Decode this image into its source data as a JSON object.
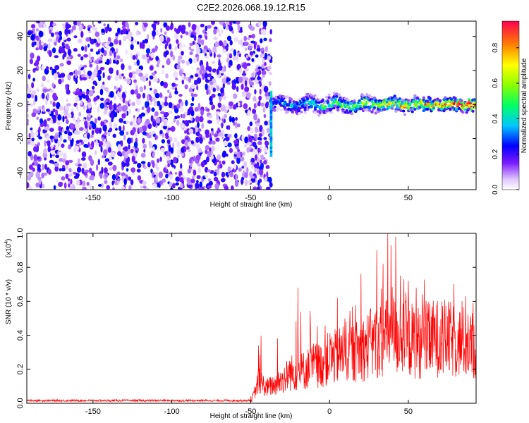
{
  "title": "C2E2.2026.068.19.12.R15",
  "chart_data": [
    {
      "type": "heatmap",
      "xlabel": "Height of straight line (km)",
      "ylabel": "Frequency (Hz)",
      "xlim": [
        -192,
        93
      ],
      "ylim": [
        -50,
        49
      ],
      "x_ticks": [
        -150,
        -100,
        -50,
        0,
        50
      ],
      "y_ticks": [
        -40,
        -20,
        0,
        20,
        40
      ],
      "colorbar": {
        "label": "Normalized spectral amplitude",
        "range": [
          0,
          0.95
        ],
        "ticks": [
          0.0,
          0.2,
          0.4,
          0.6,
          0.8
        ]
      },
      "noise_region": {
        "x_range": [
          -192,
          -37
        ],
        "note": "scattered low-amplitude speckle across all frequencies"
      },
      "signal_region": {
        "x_range": [
          -37,
          93
        ],
        "center_frequency_hz": 0,
        "band_halfwidth_hz": 4,
        "peak_amplitude": 0.9
      }
    },
    {
      "type": "line",
      "xlabel": "Height of straight line (km)",
      "ylabel": "SNR (10 * v/v)",
      "y_multiplier_label": "(x10",
      "y_multiplier_exp": "4",
      "xlim": [
        -192,
        93
      ],
      "ylim": [
        0,
        1.0
      ],
      "x_ticks": [
        -150,
        -100,
        -50,
        0,
        50
      ],
      "y_ticks": [
        "0.0",
        "0.2",
        "0.4",
        "0.6",
        "0.8",
        "1.0"
      ],
      "series": [
        {
          "color": "#ff0000",
          "x": [
            -192,
            -50,
            -47,
            -45,
            -40,
            -35,
            -30,
            -25,
            -20,
            -15,
            -10,
            -5,
            0,
            5,
            10,
            15,
            20,
            25,
            30,
            35,
            40,
            45,
            50,
            55,
            60,
            65,
            70,
            75,
            80,
            85,
            90,
            93
          ],
          "y": [
            0.01,
            0.01,
            0.08,
            0.15,
            0.1,
            0.12,
            0.15,
            0.2,
            0.2,
            0.22,
            0.25,
            0.25,
            0.3,
            0.3,
            0.35,
            0.33,
            0.35,
            0.38,
            0.4,
            0.42,
            0.45,
            0.42,
            0.42,
            0.4,
            0.4,
            0.42,
            0.43,
            0.42,
            0.4,
            0.4,
            0.38,
            0.35
          ],
          "peaks_x": [
            -45,
            -20,
            5,
            20,
            30,
            34,
            37,
            39,
            42,
            45,
            50,
            55,
            60,
            65
          ],
          "peaks_y": [
            0.34,
            0.68,
            0.62,
            0.76,
            0.9,
            0.82,
            1.0,
            0.93,
            0.98,
            0.75,
            0.72,
            0.68,
            0.6,
            0.52
          ]
        }
      ]
    }
  ]
}
